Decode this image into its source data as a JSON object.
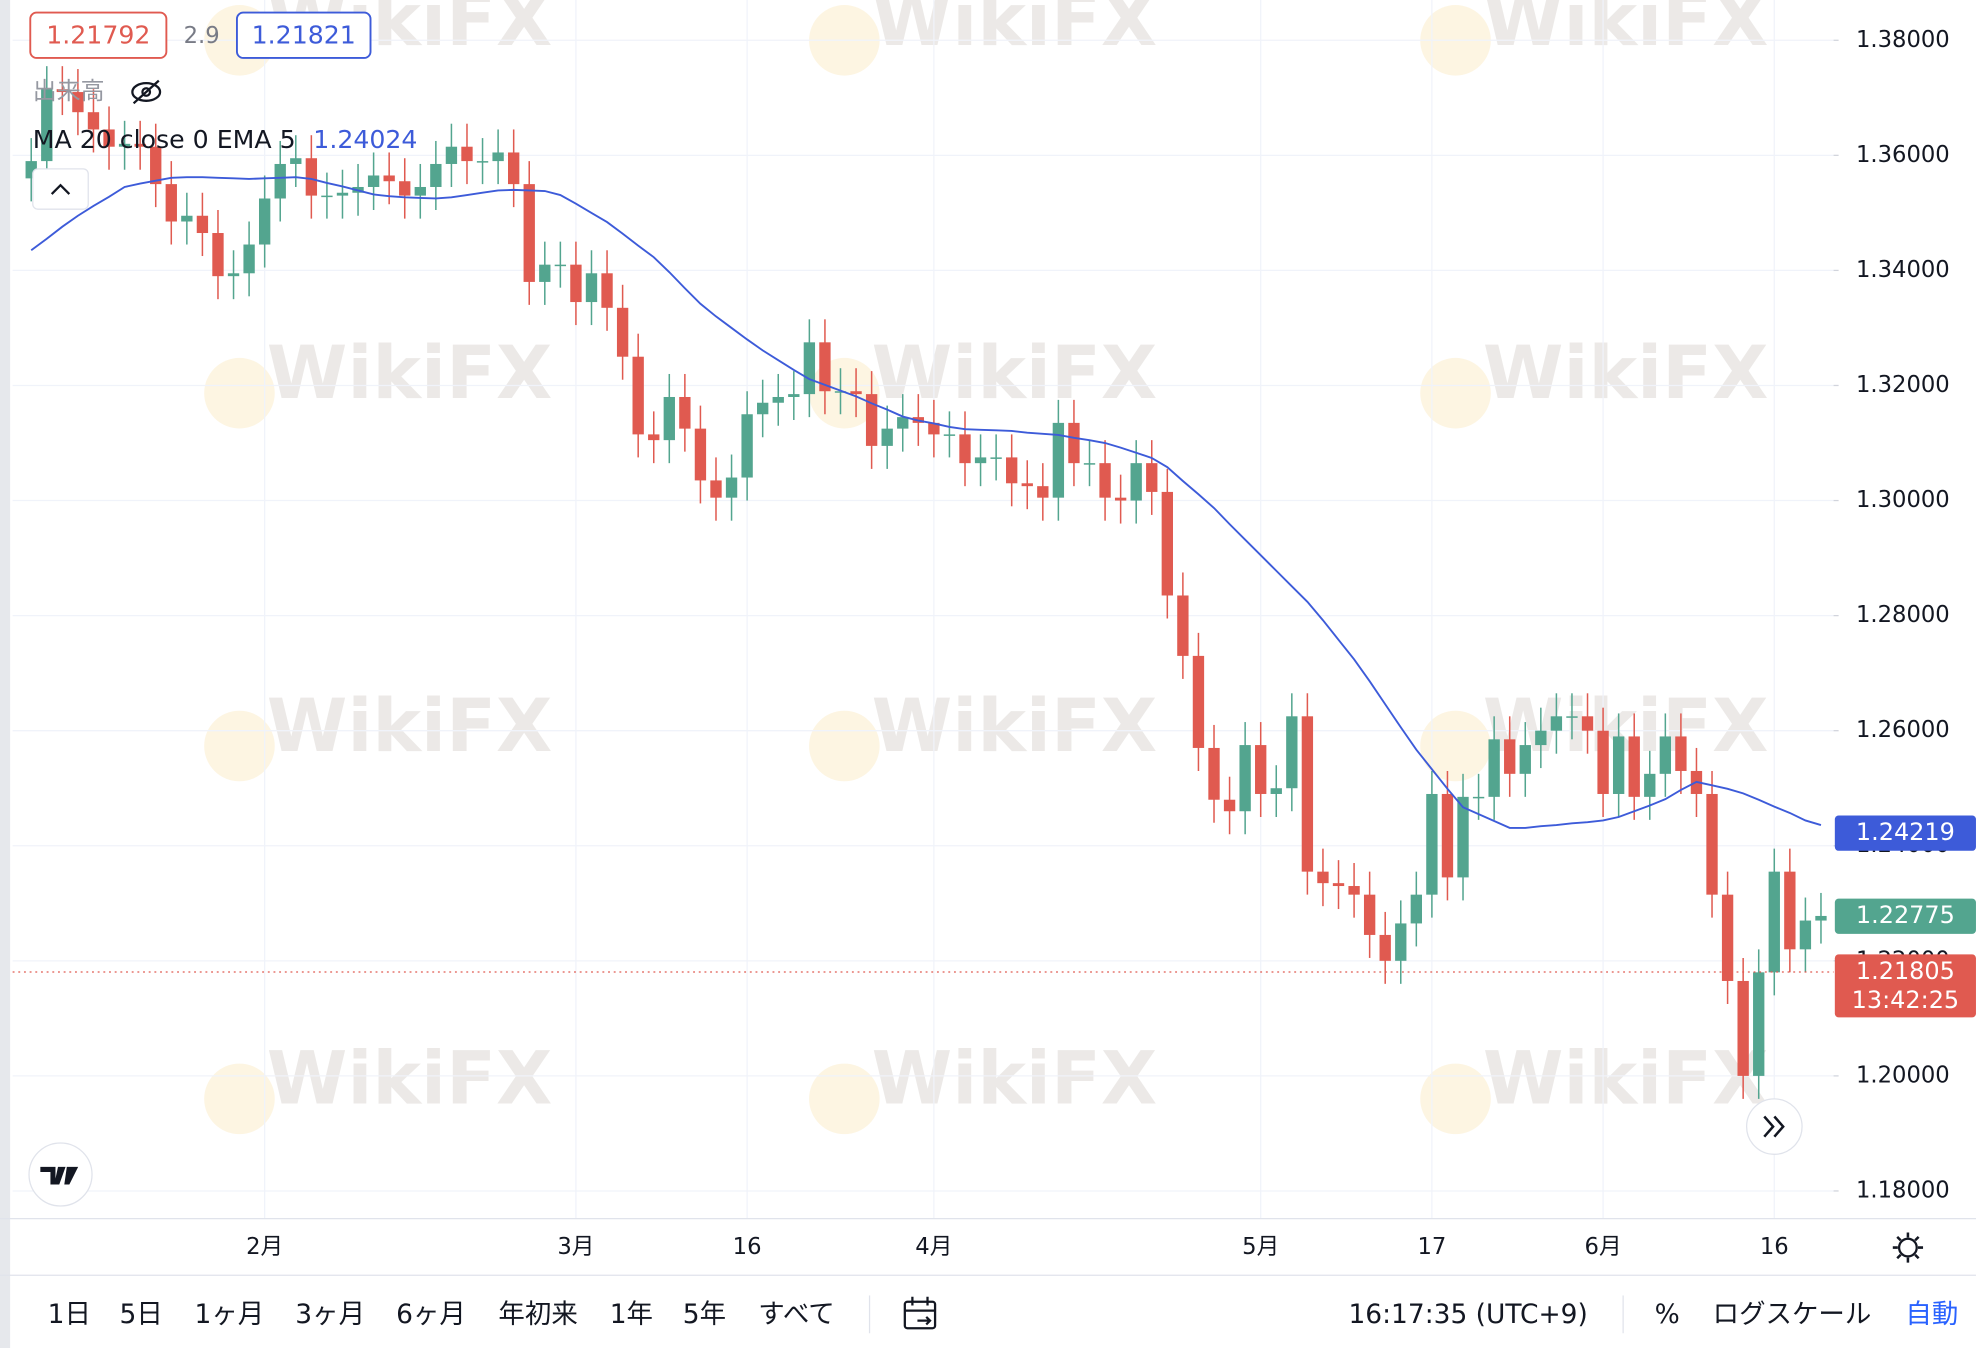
{
  "chart_data": {
    "type": "candlestick",
    "quote": {
      "bid": 1.21792,
      "spread": 2.9,
      "ask": 1.21821
    },
    "volume_label": "出来高",
    "watermark": "WikiFX",
    "up_color": "#53a58f",
    "down_color": "#e05a50",
    "grid": true,
    "ylim": [
      1.1752,
      1.387
    ],
    "yticks": [
      {
        "value": 1.38,
        "label": "1.38000"
      },
      {
        "value": 1.36,
        "label": "1.36000"
      },
      {
        "value": 1.34,
        "label": "1.34000"
      },
      {
        "value": 1.32,
        "label": "1.32000"
      },
      {
        "value": 1.3,
        "label": "1.30000"
      },
      {
        "value": 1.28,
        "label": "1.28000"
      },
      {
        "value": 1.26,
        "label": "1.26000"
      },
      {
        "value": 1.24,
        "label": "1.24000"
      },
      {
        "value": 1.22,
        "label": "1.22000"
      },
      {
        "value": 1.2,
        "label": "1.20000"
      },
      {
        "value": 1.18,
        "label": "1.18000"
      }
    ],
    "categories": [
      null,
      null,
      null,
      null,
      null,
      null,
      null,
      null,
      null,
      null,
      null,
      null,
      null,
      null,
      null,
      "2月",
      null,
      null,
      null,
      null,
      null,
      null,
      null,
      null,
      null,
      null,
      null,
      null,
      null,
      null,
      null,
      null,
      null,
      null,
      null,
      "3月",
      null,
      null,
      null,
      null,
      null,
      null,
      null,
      null,
      null,
      null,
      "16",
      null,
      null,
      null,
      null,
      null,
      null,
      null,
      null,
      null,
      null,
      null,
      "4月",
      null,
      null,
      null,
      null,
      null,
      null,
      null,
      null,
      null,
      null,
      null,
      null,
      null,
      null,
      null,
      null,
      null,
      null,
      null,
      null,
      "5月",
      null,
      null,
      null,
      null,
      null,
      null,
      null,
      null,
      null,
      null,
      "17",
      null,
      null,
      null,
      null,
      null,
      null,
      null,
      null,
      null,
      null,
      "6月",
      null,
      null,
      null,
      null,
      null,
      null,
      null,
      null,
      null,
      null,
      "16",
      null,
      null,
      null
    ],
    "open": [
      1.356,
      1.359,
      1.3715,
      1.371,
      1.3675,
      1.3645,
      1.3615,
      1.362,
      1.3615,
      1.355,
      1.3485,
      1.3495,
      1.3465,
      1.339,
      1.3395,
      1.3445,
      1.3525,
      1.3585,
      1.3595,
      1.353,
      1.353,
      1.3535,
      1.3545,
      1.3565,
      1.3555,
      1.353,
      1.3545,
      1.3585,
      1.3615,
      1.359,
      1.359,
      1.3605,
      1.355,
      1.338,
      1.341,
      1.341,
      1.3345,
      1.3395,
      1.3335,
      1.325,
      1.3115,
      1.3105,
      1.318,
      1.3125,
      1.3035,
      1.3005,
      1.304,
      1.315,
      1.317,
      1.318,
      1.3185,
      1.3275,
      1.319,
      1.319,
      1.3185,
      1.3095,
      1.3125,
      1.3145,
      1.3135,
      1.3115,
      1.3115,
      1.3065,
      1.3075,
      1.3075,
      1.303,
      1.3025,
      1.3005,
      1.3135,
      1.3065,
      1.3065,
      1.3005,
      1.3,
      1.3065,
      1.3015,
      1.2835,
      1.273,
      1.257,
      1.248,
      1.246,
      1.2575,
      1.249,
      1.25,
      1.2625,
      1.2355,
      1.2335,
      1.233,
      1.2315,
      1.2245,
      1.22,
      1.2265,
      1.2315,
      1.249,
      1.2345,
      1.2485,
      1.2485,
      1.2585,
      1.2525,
      1.2575,
      1.26,
      1.2625,
      1.2625,
      1.26,
      1.249,
      1.259,
      1.2485,
      1.2525,
      1.259,
      1.253,
      1.249,
      1.2315,
      1.2165,
      1.2,
      1.218,
      1.2355,
      1.222,
      1.227
    ],
    "high": [
      1.363,
      1.3755,
      1.3755,
      1.375,
      1.3715,
      1.3685,
      1.366,
      1.366,
      1.3655,
      1.359,
      1.3535,
      1.3535,
      1.3505,
      1.3435,
      1.3485,
      1.3565,
      1.3625,
      1.3635,
      1.3635,
      1.357,
      1.3575,
      1.3585,
      1.3605,
      1.3605,
      1.3595,
      1.3585,
      1.3625,
      1.3655,
      1.3655,
      1.363,
      1.3645,
      1.3645,
      1.359,
      1.345,
      1.345,
      1.345,
      1.3435,
      1.3435,
      1.3375,
      1.329,
      1.3155,
      1.322,
      1.322,
      1.3165,
      1.3075,
      1.308,
      1.319,
      1.321,
      1.322,
      1.3225,
      1.3315,
      1.3315,
      1.323,
      1.323,
      1.3225,
      1.3165,
      1.3185,
      1.3185,
      1.3175,
      1.3155,
      1.3155,
      1.3115,
      1.3115,
      1.3115,
      1.307,
      1.3065,
      1.3175,
      1.3175,
      1.3105,
      1.3105,
      1.3045,
      1.3105,
      1.3105,
      1.3055,
      1.2875,
      1.277,
      1.261,
      1.252,
      1.2615,
      1.2615,
      1.254,
      1.2665,
      1.2665,
      1.2395,
      1.2375,
      1.237,
      1.2355,
      1.2285,
      1.2305,
      1.2355,
      1.253,
      1.253,
      1.2525,
      1.2525,
      1.2625,
      1.2625,
      1.2615,
      1.264,
      1.2665,
      1.2665,
      1.2665,
      1.264,
      1.263,
      1.263,
      1.2565,
      1.263,
      1.263,
      1.257,
      1.253,
      1.2355,
      1.2205,
      1.222,
      1.2395,
      1.2395,
      1.231,
      1.2318
    ],
    "low": [
      1.352,
      1.355,
      1.367,
      1.3635,
      1.3605,
      1.3575,
      1.3575,
      1.3575,
      1.351,
      1.3445,
      1.3445,
      1.3425,
      1.335,
      1.335,
      1.3355,
      1.3405,
      1.3485,
      1.3545,
      1.349,
      1.349,
      1.349,
      1.3495,
      1.3505,
      1.3515,
      1.349,
      1.349,
      1.3505,
      1.3545,
      1.355,
      1.355,
      1.355,
      1.351,
      1.334,
      1.334,
      1.337,
      1.3305,
      1.3305,
      1.3295,
      1.321,
      1.3075,
      1.3065,
      1.3065,
      1.3085,
      1.2995,
      1.2965,
      1.2965,
      1.3,
      1.311,
      1.313,
      1.314,
      1.3145,
      1.315,
      1.315,
      1.3145,
      1.3055,
      1.3055,
      1.3085,
      1.3095,
      1.3075,
      1.3075,
      1.3025,
      1.3025,
      1.3035,
      1.299,
      1.2985,
      1.2965,
      1.2965,
      1.3025,
      1.3025,
      1.2965,
      1.296,
      1.296,
      1.2975,
      1.2795,
      1.269,
      1.253,
      1.244,
      1.242,
      1.242,
      1.245,
      1.245,
      1.246,
      1.2315,
      1.2295,
      1.229,
      1.2275,
      1.2205,
      1.216,
      1.216,
      1.2225,
      1.2275,
      1.2305,
      1.2305,
      1.2445,
      1.2445,
      1.2485,
      1.2485,
      1.2535,
      1.256,
      1.2585,
      1.256,
      1.245,
      1.245,
      1.2445,
      1.2445,
      1.2485,
      1.249,
      1.245,
      1.2275,
      1.2125,
      1.196,
      1.196,
      1.214,
      1.218,
      1.218,
      1.223
    ],
    "close": [
      1.359,
      1.3715,
      1.371,
      1.3675,
      1.3645,
      1.3615,
      1.362,
      1.3615,
      1.355,
      1.3485,
      1.3495,
      1.3465,
      1.339,
      1.3395,
      1.3445,
      1.3525,
      1.3585,
      1.3595,
      1.353,
      1.353,
      1.3535,
      1.3545,
      1.3565,
      1.3555,
      1.353,
      1.3545,
      1.3585,
      1.3615,
      1.359,
      1.359,
      1.3605,
      1.355,
      1.338,
      1.341,
      1.341,
      1.3345,
      1.3395,
      1.3335,
      1.325,
      1.3115,
      1.3105,
      1.318,
      1.3125,
      1.3035,
      1.3005,
      1.304,
      1.315,
      1.317,
      1.318,
      1.3185,
      1.3275,
      1.319,
      1.319,
      1.3185,
      1.3095,
      1.3125,
      1.3145,
      1.3135,
      1.3115,
      1.3115,
      1.3065,
      1.3075,
      1.3075,
      1.303,
      1.3025,
      1.3005,
      1.3135,
      1.3065,
      1.3065,
      1.3005,
      1.3,
      1.3065,
      1.3015,
      1.2835,
      1.273,
      1.257,
      1.248,
      1.246,
      1.2575,
      1.249,
      1.25,
      1.2625,
      1.2355,
      1.2335,
      1.233,
      1.2315,
      1.2245,
      1.22,
      1.2265,
      1.2315,
      1.249,
      1.2345,
      1.2485,
      1.2485,
      1.2585,
      1.2525,
      1.2575,
      1.26,
      1.2625,
      1.2625,
      1.26,
      1.249,
      1.259,
      1.2485,
      1.2525,
      1.259,
      1.253,
      1.249,
      1.2315,
      1.2165,
      1.2,
      1.218,
      1.2355,
      1.222,
      1.227,
      1.2278
    ],
    "ma": {
      "name": "MA 20 close 0 EMA 5",
      "legend_value": 1.24024,
      "color": "#3d5bd9",
      "values": [
        1.3435,
        1.3455,
        1.3476,
        1.3495,
        1.3512,
        1.3528,
        1.3545,
        1.3551,
        1.3556,
        1.3561,
        1.3562,
        1.3562,
        1.3561,
        1.356,
        1.3559,
        1.356,
        1.3561,
        1.3562,
        1.3559,
        1.3552,
        1.3546,
        1.3539,
        1.3532,
        1.3529,
        1.3527,
        1.3526,
        1.3525,
        1.3527,
        1.3531,
        1.3535,
        1.3539,
        1.354,
        1.3539,
        1.3538,
        1.3531,
        1.3516,
        1.35,
        1.3484,
        1.3464,
        1.3443,
        1.3423,
        1.3397,
        1.3369,
        1.3342,
        1.332,
        1.33,
        1.328,
        1.3261,
        1.3244,
        1.3227,
        1.3211,
        1.3201,
        1.3191,
        1.3181,
        1.3169,
        1.3158,
        1.3146,
        1.3139,
        1.3134,
        1.3128,
        1.3124,
        1.3123,
        1.3122,
        1.3121,
        1.3118,
        1.3116,
        1.3114,
        1.3109,
        1.3105,
        1.31,
        1.3092,
        1.3083,
        1.3074,
        1.3058,
        1.3034,
        1.3011,
        1.2987,
        1.2959,
        1.2932,
        1.2905,
        1.2878,
        1.2851,
        1.2824,
        1.2792,
        1.2758,
        1.2724,
        1.2686,
        1.2646,
        1.2606,
        1.2567,
        1.2533,
        1.2499,
        1.2467,
        1.2455,
        1.2443,
        1.2431,
        1.2431,
        1.2434,
        1.2436,
        1.2439,
        1.2441,
        1.2444,
        1.245,
        1.246,
        1.247,
        1.2481,
        1.2497,
        1.2511,
        1.2505,
        1.2499,
        1.2491,
        1.248,
        1.2468,
        1.2457,
        1.2444,
        1.2436
      ]
    },
    "price_labels": [
      {
        "value": 1.24219,
        "color": "#3d5bd9"
      },
      {
        "value": 1.22775,
        "color": "#53a58f"
      },
      {
        "value": 1.21805,
        "color": "#e05a50",
        "countdown": "13:42:25"
      }
    ]
  },
  "toolbar": {
    "ranges": [
      "1日",
      "5日",
      "1ヶ月",
      "3ヶ月",
      "6ヶ月",
      "年初来",
      "1年",
      "5年",
      "すべて"
    ],
    "clock": "16:17:35 (UTC+9)",
    "percent": "%",
    "log_scale": "ログスケール",
    "auto": "自動"
  }
}
